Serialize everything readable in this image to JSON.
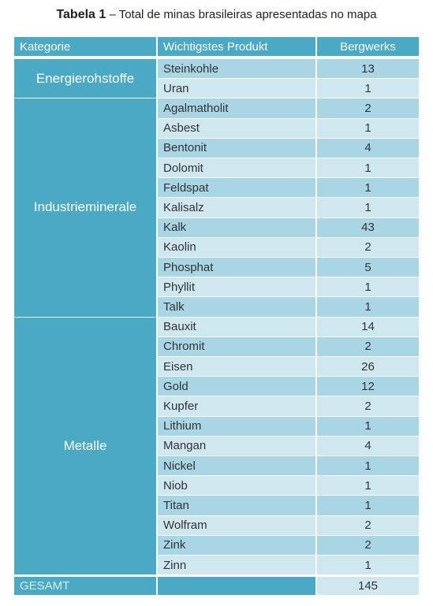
{
  "caption": {
    "label": "Tabela 1",
    "text": "– Total de minas brasileiras apresentadas no mapa"
  },
  "table": {
    "header": [
      "Kategorie",
      "Wichtigstes Produkt",
      "Bergwerks"
    ],
    "groups": [
      {
        "category": "Energierohstoffe",
        "rows": [
          [
            "Steinkohle",
            13
          ],
          [
            "Uran",
            1
          ]
        ]
      },
      {
        "category": "Industrieminerale",
        "rows": [
          [
            "Agalmatholit",
            2
          ],
          [
            "Asbest",
            1
          ],
          [
            "Bentonit",
            4
          ],
          [
            "Dolomit",
            1
          ],
          [
            "Feldspat",
            1
          ],
          [
            "Kalisalz",
            1
          ],
          [
            "Kalk",
            43
          ],
          [
            "Kaolin",
            2
          ],
          [
            "Phosphat",
            5
          ],
          [
            "Phyllit",
            1
          ],
          [
            "Talk",
            1
          ]
        ]
      },
      {
        "category": "Metalle",
        "rows": [
          [
            "Bauxit",
            14
          ],
          [
            "Chromit",
            2
          ],
          [
            "Eisen",
            26
          ],
          [
            "Gold",
            12
          ],
          [
            "Kupfer",
            2
          ],
          [
            "Lithium",
            1
          ],
          [
            "Mangan",
            4
          ],
          [
            "Nickel",
            1
          ],
          [
            "Niob",
            1
          ],
          [
            "Titan",
            1
          ],
          [
            "Wolfram",
            2
          ],
          [
            "Zink",
            2
          ],
          [
            "Zinn",
            1
          ]
        ]
      }
    ],
    "total": {
      "label": "GESAMT",
      "value": 145
    }
  }
}
